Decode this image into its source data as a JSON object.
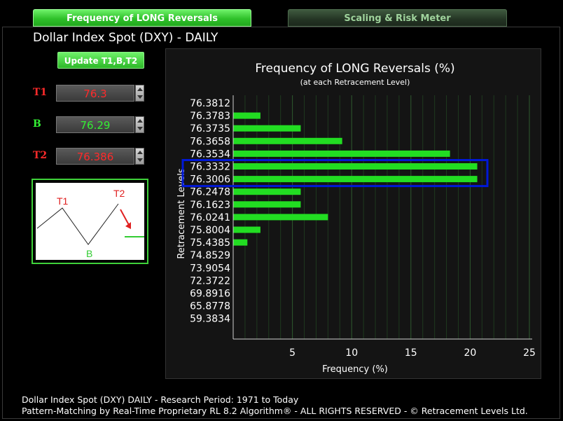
{
  "tabs": [
    {
      "label": "Frequency of LONG Reversals",
      "active": true
    },
    {
      "label": "Scaling & Risk Meter",
      "active": false
    }
  ],
  "page_title": "Dollar Index Spot (DXY) - DAILY",
  "update_button": "Update T1,B,T2",
  "levels": {
    "t1": {
      "label": "T1",
      "value": "76.3",
      "color": "#ff2a2a"
    },
    "b": {
      "label": "B",
      "value": "76.29",
      "color": "#33ee33"
    },
    "t2": {
      "label": "T2",
      "value": "76.386",
      "color": "#ff2a2a"
    }
  },
  "diagram": {
    "t1": "T1",
    "b": "B",
    "t2": "T2"
  },
  "chart_data": {
    "type": "bar",
    "orientation": "horizontal",
    "title": "Frequency of LONG Reversals (%)",
    "subtitle": "(at each Retracement Level)",
    "xlabel": "Frequency (%)",
    "ylabel": "Retracement Levels",
    "xlim": [
      0,
      25
    ],
    "xticks": [
      "5",
      "10",
      "15",
      "20",
      "25"
    ],
    "grid": "vertical",
    "bar_color": "#22dd22",
    "highlight_color": "#0018d8",
    "highlighted": [
      "76.3332",
      "76.3006"
    ],
    "categories": [
      "76.3812",
      "76.3783",
      "76.3735",
      "76.3658",
      "76.3534",
      "76.3332",
      "76.3006",
      "76.2478",
      "76.1623",
      "76.0241",
      "75.8004",
      "75.4385",
      "74.8529",
      "73.9054",
      "72.3722",
      "69.8916",
      "65.8778",
      "59.3834"
    ],
    "values": [
      0,
      2.3,
      5.7,
      9.2,
      18.3,
      20.6,
      20.6,
      5.7,
      5.7,
      8.0,
      2.3,
      1.2,
      0,
      0,
      0,
      0,
      0,
      0
    ]
  },
  "footer": {
    "line1": "Dollar Index Spot (DXY) DAILY - Research Period: 1971 to Today",
    "line2": "Pattern-Matching by Real-Time Proprietary RL 8.2 Algorithm®  -  ALL RIGHTS RESERVED - © Retracement Levels Ltd."
  }
}
